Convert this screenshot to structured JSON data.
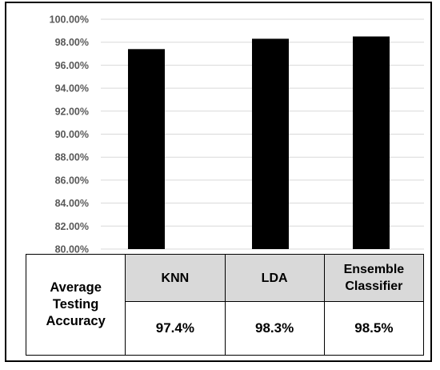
{
  "chart_data": {
    "type": "bar",
    "categories": [
      "KNN",
      "LDA",
      "Ensemble Classifier"
    ],
    "values": [
      97.4,
      98.3,
      98.5
    ],
    "ylim": [
      80,
      100
    ],
    "yticks": [
      "80.00%",
      "82.00%",
      "84.00%",
      "86.00%",
      "88.00%",
      "90.00%",
      "92.00%",
      "94.00%",
      "96.00%",
      "98.00%",
      "100.00%"
    ],
    "grid": true,
    "bar_color": "#000000",
    "grid_color": "#d9d9d9",
    "title": "",
    "xlabel": "",
    "ylabel": ""
  },
  "table": {
    "row_label": "Average Testing Accuracy",
    "headers": [
      "KNN",
      "LDA",
      "Ensemble Classifier"
    ],
    "values": [
      "97.4%",
      "98.3%",
      "98.5%"
    ]
  }
}
